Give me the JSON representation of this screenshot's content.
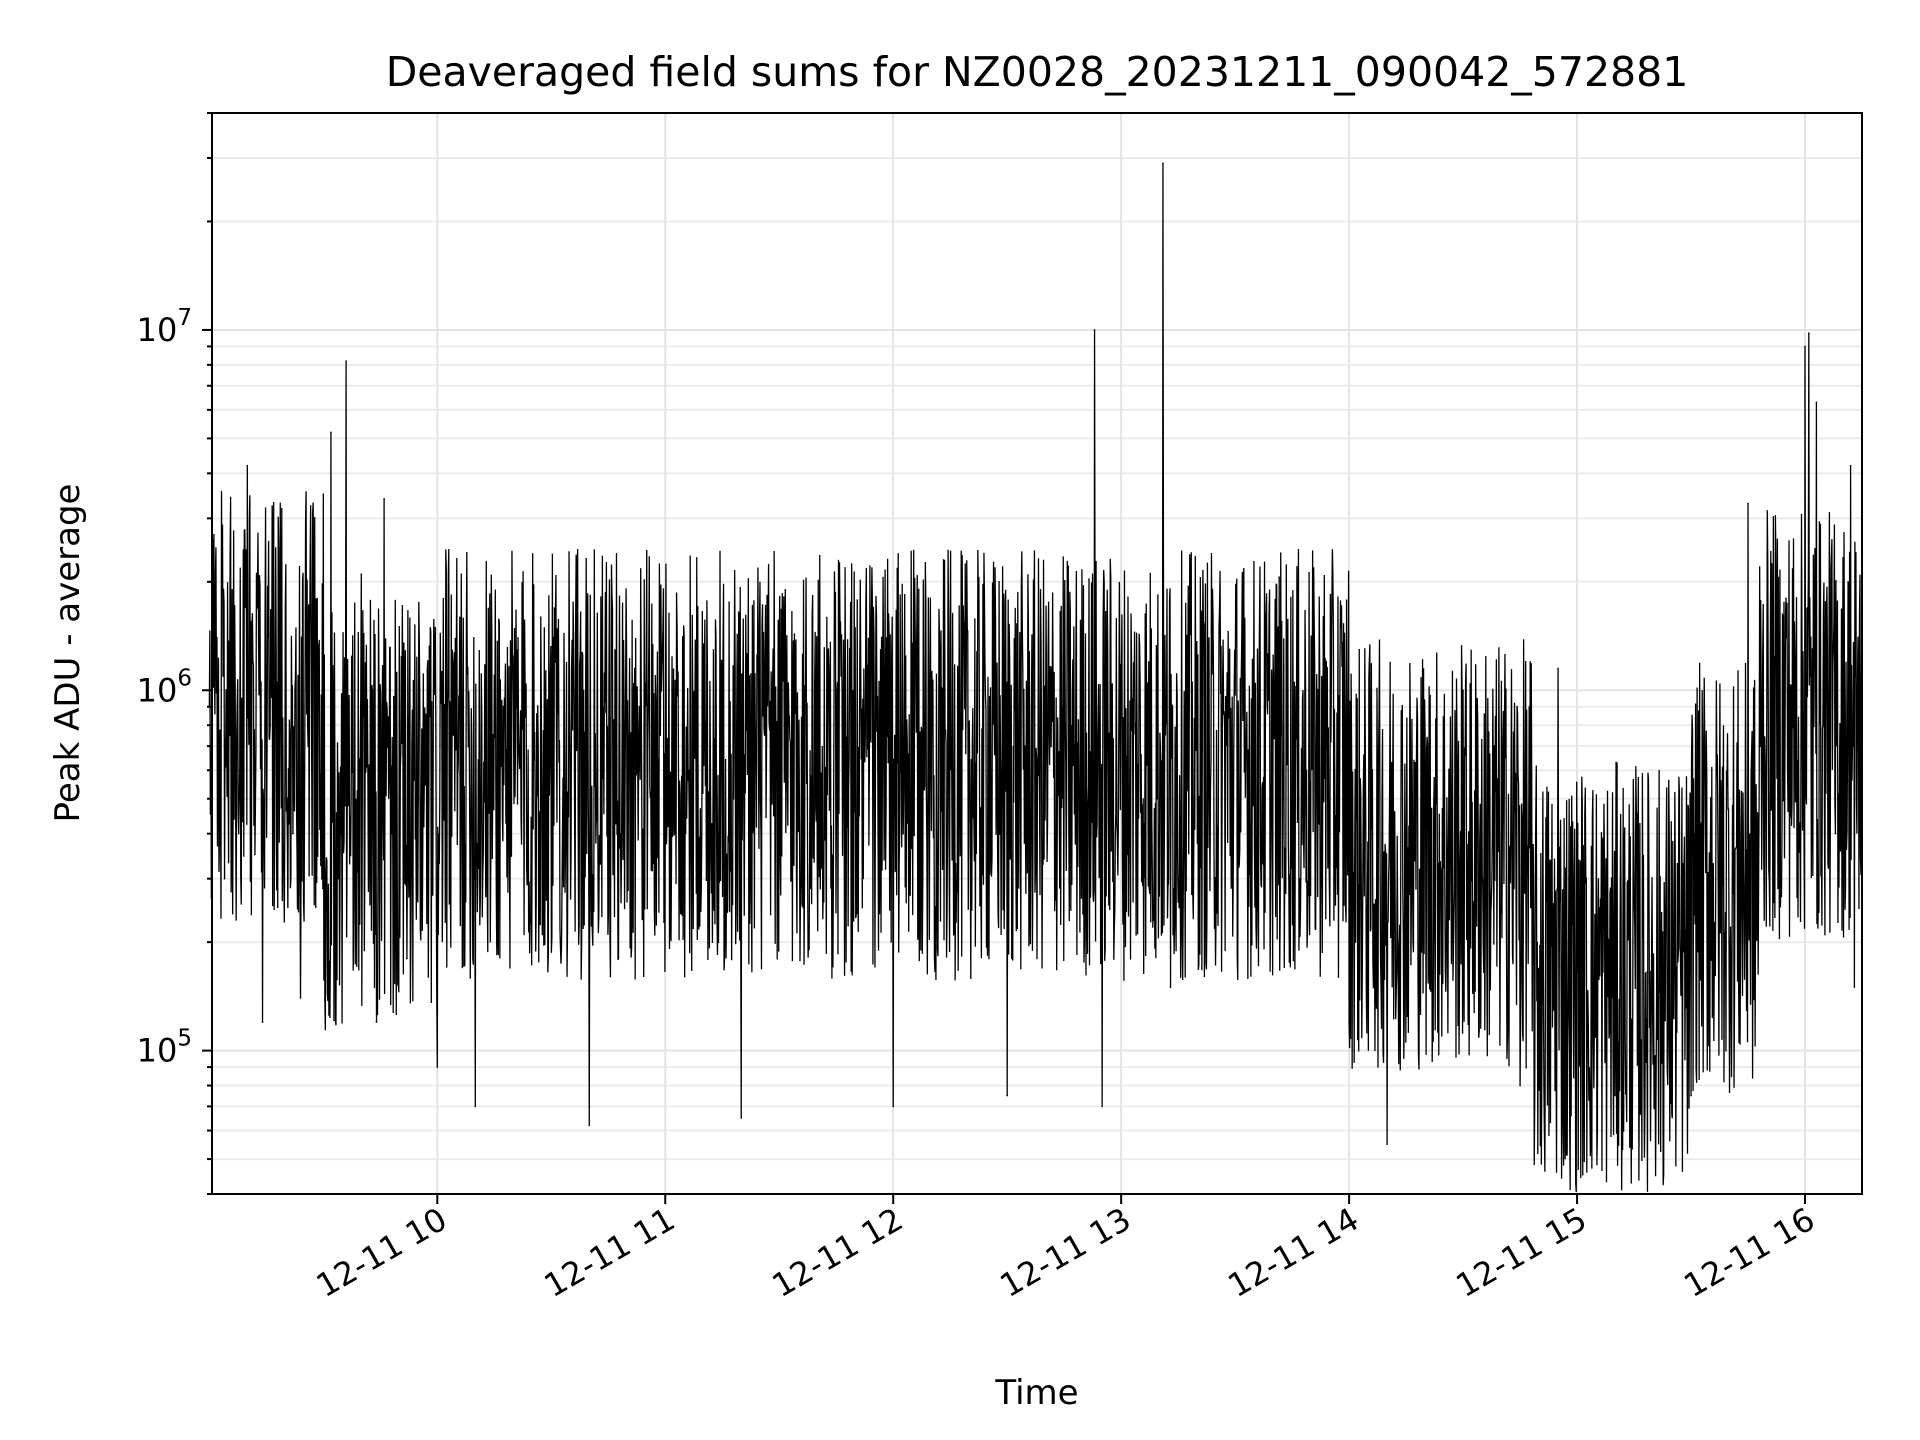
{
  "chart_data": {
    "type": "line",
    "title": "Deaveraged field sums for NZ0028_20231211_090042_572881",
    "xlabel": "Time",
    "ylabel": "Peak ADU - average",
    "x_ticks": [
      "12-11 10",
      "12-11 11",
      "12-11 12",
      "12-11 13",
      "12-11 14",
      "12-11 15",
      "12-11 16"
    ],
    "x_tick_hours": [
      10,
      11,
      12,
      13,
      14,
      15,
      16
    ],
    "y_ticks": [
      {
        "value": 100000,
        "mantissa": "10",
        "exponent": "5"
      },
      {
        "value": 1000000,
        "mantissa": "10",
        "exponent": "6"
      },
      {
        "value": 10000000,
        "mantissa": "10",
        "exponent": "7"
      }
    ],
    "y_scale": "log",
    "date": "2023-12-11",
    "xlim": [
      "2023-12-11 09:00:42",
      "2023-12-11 16:15:00"
    ],
    "ylim": [
      40000,
      40000000
    ],
    "grid": true,
    "line_color": "#000000",
    "series": [
      {
        "points": [
          [
            "2023-12-11 09:00",
            900000
          ],
          [
            "2023-12-11 09:02",
            1400000
          ],
          [
            "2023-12-11 09:04",
            300000
          ],
          [
            "2023-12-11 09:06",
            1900000
          ],
          [
            "2023-12-11 09:08",
            600000
          ],
          [
            "2023-12-11 09:10",
            4200000
          ],
          [
            "2023-12-11 09:12",
            350000
          ],
          [
            "2023-12-11 09:14",
            120000
          ],
          [
            "2023-12-11 09:16",
            800000
          ],
          [
            "2023-12-11 09:18",
            250000
          ],
          [
            "2023-12-11 09:20",
            1700000
          ],
          [
            "2023-12-11 09:22",
            400000
          ],
          [
            "2023-12-11 09:24",
            140000
          ],
          [
            "2023-12-11 09:26",
            700000
          ],
          [
            "2023-12-11 09:28",
            250000
          ],
          [
            "2023-12-11 09:30",
            3500000
          ],
          [
            "2023-12-11 09:32",
            5200000
          ],
          [
            "2023-12-11 09:34",
            300000
          ],
          [
            "2023-12-11 09:36",
            8200000
          ],
          [
            "2023-12-11 09:38",
            250000
          ],
          [
            "2023-12-11 09:40",
            2100000
          ],
          [
            "2023-12-11 09:42",
            600000
          ],
          [
            "2023-12-11 09:44",
            120000
          ],
          [
            "2023-12-11 09:46",
            3400000
          ],
          [
            "2023-12-11 09:48",
            400000
          ],
          [
            "2023-12-11 09:50",
            1500000
          ],
          [
            "2023-12-11 09:52",
            180000
          ],
          [
            "2023-12-11 09:55",
            500000
          ],
          [
            "2023-12-11 10:00",
            90000
          ],
          [
            "2023-12-11 10:05",
            1200000
          ],
          [
            "2023-12-11 10:10",
            70000
          ],
          [
            "2023-12-11 10:15",
            1100000
          ],
          [
            "2023-12-11 10:40",
            62000
          ],
          [
            "2023-12-11 10:55",
            1400000
          ],
          [
            "2023-12-11 11:20",
            65000
          ],
          [
            "2023-12-11 11:30",
            1300000
          ],
          [
            "2023-12-11 12:00",
            70000
          ],
          [
            "2023-12-11 12:05",
            1350000
          ],
          [
            "2023-12-11 12:30",
            75000
          ],
          [
            "2023-12-11 12:53",
            10000000
          ],
          [
            "2023-12-11 12:55",
            70000
          ],
          [
            "2023-12-11 13:11",
            29000000
          ],
          [
            "2023-12-11 13:13",
            150000
          ],
          [
            "2023-12-11 13:40",
            1250000
          ],
          [
            "2023-12-11 14:00",
            120000
          ],
          [
            "2023-12-11 14:10",
            55000
          ],
          [
            "2023-12-11 14:30",
            1000000
          ],
          [
            "2023-12-11 14:45",
            80000
          ],
          [
            "2023-12-11 14:55",
            1150000
          ],
          [
            "2023-12-11 15:10",
            75000
          ],
          [
            "2023-12-11 15:30",
            75000
          ],
          [
            "2023-12-11 15:40",
            200000
          ],
          [
            "2023-12-11 15:45",
            3300000
          ],
          [
            "2023-12-11 15:55",
            1800000
          ],
          [
            "2023-12-11 16:00",
            9000000
          ],
          [
            "2023-12-11 16:01",
            9800000
          ],
          [
            "2023-12-11 16:03",
            6300000
          ],
          [
            "2023-12-11 16:08",
            400000
          ],
          [
            "2023-12-11 16:12",
            4200000
          ],
          [
            "2023-12-11 16:13",
            150000
          ],
          [
            "2023-12-11 16:15",
            1800000
          ]
        ]
      }
    ]
  }
}
